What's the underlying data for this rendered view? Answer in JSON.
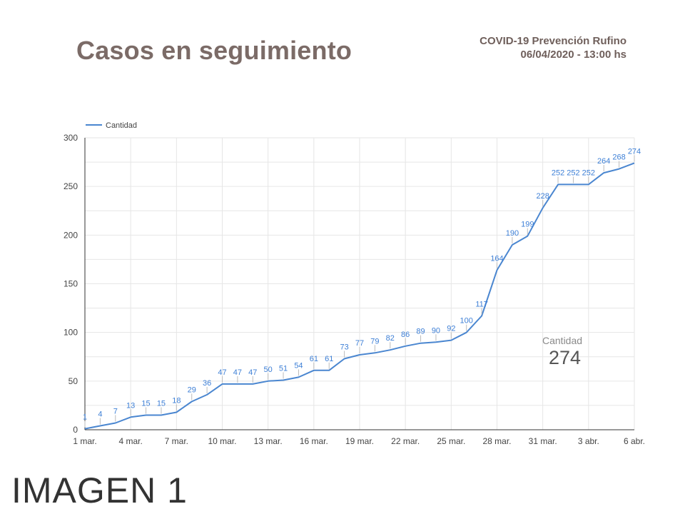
{
  "header": {
    "title": "Casos en seguimiento",
    "source_line1": "COVID-19 Prevención Rufino",
    "source_line2": "06/04/2020 - 13:00 hs"
  },
  "caption": "IMAGEN 1",
  "scorecard": {
    "label": "Cantidad",
    "value": "274"
  },
  "colors": {
    "line": "#4a86d0",
    "label": "#3d7fd6",
    "grid": "#e6e6e6",
    "title": "#7b6b67"
  },
  "chart_data": {
    "type": "line",
    "title": "Casos en seguimiento",
    "legend": {
      "position": "top-left",
      "entries": [
        "Cantidad"
      ]
    },
    "grid": true,
    "ylim": [
      0,
      300
    ],
    "y_ticks": [
      0,
      50,
      100,
      150,
      200,
      250,
      300
    ],
    "x_tick_labels": [
      "1 mar.",
      "4 mar.",
      "7 mar.",
      "10 mar.",
      "13 mar.",
      "16 mar.",
      "19 mar.",
      "22 mar.",
      "25 mar.",
      "28 mar.",
      "31 mar.",
      "3 abr.",
      "6 abr."
    ],
    "x_range": [
      "2020-03-01",
      "2020-04-06"
    ],
    "series": [
      {
        "name": "Cantidad",
        "values": [
          1,
          4,
          7,
          13,
          15,
          15,
          18,
          29,
          36,
          47,
          47,
          47,
          50,
          51,
          54,
          61,
          61,
          73,
          77,
          79,
          82,
          86,
          89,
          90,
          92,
          100,
          117,
          164,
          190,
          199,
          228,
          252,
          252,
          252,
          264,
          268,
          274
        ]
      }
    ]
  }
}
